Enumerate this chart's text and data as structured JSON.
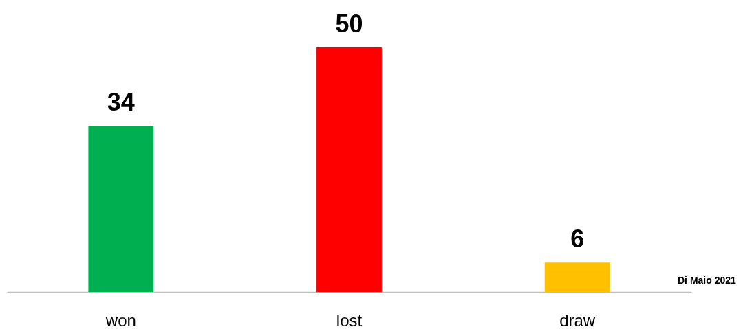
{
  "chart_data": {
    "type": "bar",
    "categories": [
      "won",
      "lost",
      "draw"
    ],
    "values": [
      34,
      50,
      6
    ],
    "colors": [
      "#00b050",
      "#ff0000",
      "#ffc000"
    ],
    "data_labels": true,
    "annotations": [
      "Di Maio 2021"
    ]
  }
}
